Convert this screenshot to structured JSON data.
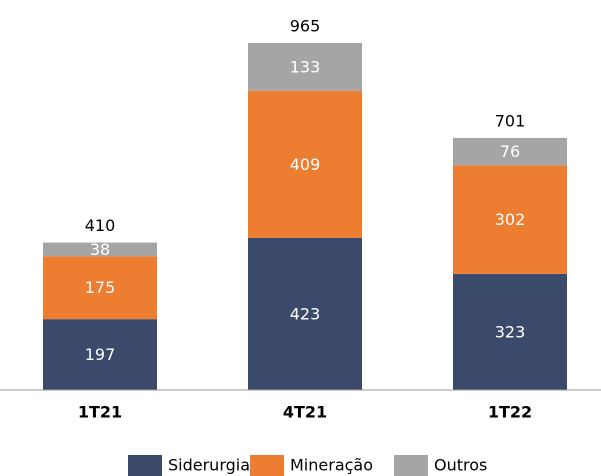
{
  "chart_data": {
    "type": "stacked_bar",
    "categories": [
      "1T21",
      "4T21",
      "1T22"
    ],
    "series": [
      {
        "name": "Siderurgia",
        "color": "#3b4a6b",
        "values": [
          197,
          423,
          323
        ]
      },
      {
        "name": "Mineração",
        "color": "#ed7d31",
        "values": [
          175,
          409,
          302
        ]
      },
      {
        "name": "Outros",
        "color": "#a5a5a5",
        "values": [
          38,
          133,
          76
        ]
      }
    ],
    "totals": [
      410,
      965,
      701
    ]
  }
}
